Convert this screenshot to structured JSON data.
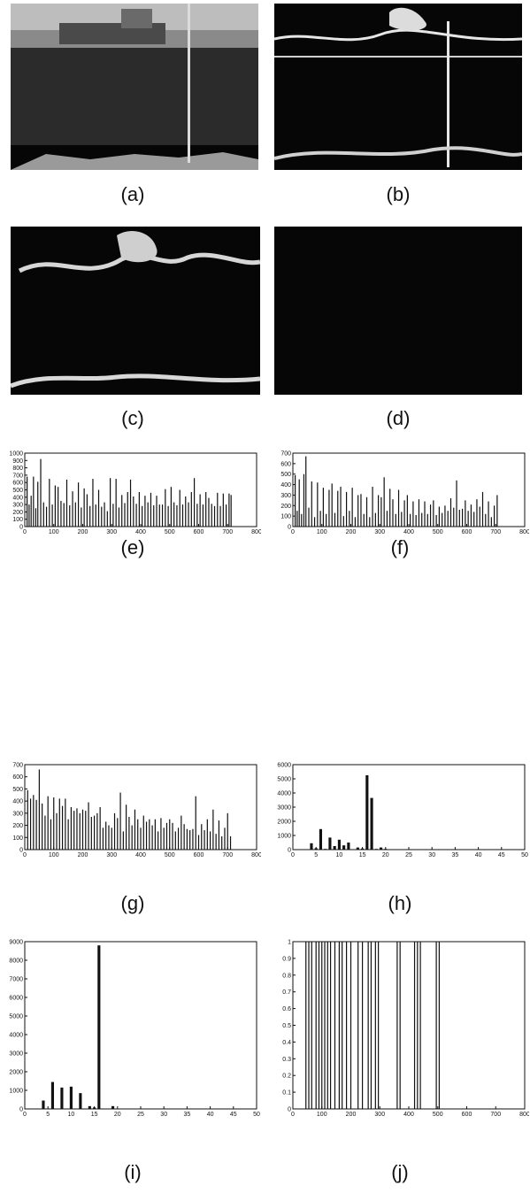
{
  "captions": {
    "a": "(a)",
    "b": "(b)",
    "c": "(c)",
    "d": "(d)",
    "e": "(e)",
    "f": "(f)",
    "g": "(g)",
    "h": "(h)",
    "i": "(i)",
    "j": "(j)"
  },
  "chart_data": [
    {
      "id": "e",
      "type": "bar",
      "xlim": [
        0,
        800
      ],
      "ylim": [
        0,
        1000
      ],
      "xticks": [
        "0",
        "100",
        "200",
        "300",
        "400",
        "500",
        "600",
        "700",
        "800"
      ],
      "yticks": [
        "0",
        "100",
        "200",
        "300",
        "400",
        "500",
        "600",
        "700",
        "800",
        "900",
        "1000"
      ],
      "bar_color": "#111111",
      "x": [
        8,
        15,
        22,
        30,
        38,
        45,
        55,
        65,
        75,
        85,
        95,
        105,
        115,
        125,
        135,
        145,
        155,
        165,
        175,
        185,
        195,
        205,
        215,
        225,
        235,
        245,
        255,
        265,
        275,
        285,
        295,
        305,
        315,
        325,
        335,
        345,
        355,
        365,
        375,
        385,
        395,
        405,
        415,
        425,
        435,
        445,
        455,
        465,
        475,
        485,
        495,
        505,
        515,
        525,
        535,
        545,
        555,
        565,
        575,
        585,
        595,
        605,
        615,
        625,
        635,
        645,
        655,
        665,
        675,
        685,
        695,
        705,
        712
      ],
      "values": [
        680,
        300,
        420,
        680,
        250,
        610,
        920,
        330,
        270,
        650,
        300,
        560,
        540,
        350,
        320,
        640,
        290,
        480,
        330,
        600,
        260,
        520,
        440,
        280,
        650,
        300,
        500,
        270,
        330,
        210,
        660,
        310,
        650,
        260,
        430,
        320,
        470,
        640,
        410,
        310,
        470,
        280,
        420,
        330,
        460,
        290,
        420,
        300,
        300,
        510,
        280,
        540,
        330,
        290,
        500,
        300,
        410,
        330,
        470,
        660,
        310,
        440,
        300,
        470,
        390,
        310,
        280,
        460,
        280,
        450,
        300,
        450,
        430
      ]
    },
    {
      "id": "f",
      "type": "bar",
      "xlim": [
        0,
        800
      ],
      "ylim": [
        0,
        700
      ],
      "xticks": [
        "0",
        "100",
        "200",
        "300",
        "400",
        "500",
        "600",
        "700",
        "800"
      ],
      "yticks": [
        "0",
        "100",
        "200",
        "300",
        "400",
        "500",
        "600",
        "700"
      ],
      "bar_color": "#111111",
      "x": [
        8,
        15,
        22,
        30,
        38,
        45,
        55,
        65,
        75,
        85,
        95,
        105,
        115,
        125,
        135,
        145,
        155,
        165,
        175,
        185,
        195,
        205,
        215,
        225,
        235,
        245,
        255,
        265,
        275,
        285,
        295,
        305,
        315,
        325,
        335,
        345,
        355,
        365,
        375,
        385,
        395,
        405,
        415,
        425,
        435,
        445,
        455,
        465,
        475,
        485,
        495,
        505,
        515,
        525,
        535,
        545,
        555,
        565,
        575,
        585,
        595,
        605,
        615,
        625,
        635,
        645,
        655,
        665,
        675,
        685,
        695,
        705
      ],
      "values": [
        490,
        150,
        450,
        120,
        500,
        670,
        180,
        430,
        90,
        420,
        150,
        370,
        120,
        350,
        410,
        130,
        340,
        380,
        100,
        330,
        150,
        370,
        90,
        300,
        310,
        120,
        280,
        90,
        380,
        130,
        300,
        280,
        470,
        150,
        360,
        260,
        120,
        350,
        140,
        250,
        300,
        120,
        240,
        110,
        260,
        130,
        240,
        120,
        210,
        250,
        110,
        190,
        130,
        200,
        150,
        270,
        180,
        440,
        160,
        170,
        250,
        150,
        210,
        140,
        260,
        190,
        330,
        120,
        240,
        90,
        200,
        300
      ]
    },
    {
      "id": "g",
      "type": "bar",
      "xlim": [
        0,
        800
      ],
      "ylim": [
        0,
        700
      ],
      "xticks": [
        "0",
        "100",
        "200",
        "300",
        "400",
        "500",
        "600",
        "700",
        "800"
      ],
      "yticks": [
        "0",
        "100",
        "200",
        "300",
        "400",
        "500",
        "600",
        "700"
      ],
      "bar_color": "#111111",
      "x": [
        10,
        20,
        30,
        40,
        50,
        60,
        70,
        80,
        90,
        100,
        110,
        120,
        130,
        140,
        150,
        160,
        170,
        180,
        190,
        200,
        210,
        220,
        230,
        240,
        250,
        260,
        270,
        280,
        290,
        300,
        310,
        320,
        330,
        340,
        350,
        360,
        370,
        380,
        390,
        400,
        410,
        420,
        430,
        440,
        450,
        460,
        470,
        480,
        490,
        500,
        510,
        520,
        530,
        540,
        550,
        560,
        570,
        580,
        590,
        600,
        610,
        620,
        630,
        640,
        650,
        660,
        670,
        680,
        690,
        700,
        710
      ],
      "values": [
        490,
        420,
        450,
        410,
        660,
        380,
        280,
        440,
        250,
        430,
        300,
        420,
        360,
        420,
        250,
        350,
        320,
        340,
        300,
        330,
        320,
        390,
        270,
        280,
        300,
        350,
        180,
        230,
        200,
        180,
        300,
        260,
        470,
        150,
        370,
        270,
        200,
        330,
        250,
        180,
        280,
        230,
        250,
        200,
        250,
        150,
        260,
        180,
        220,
        250,
        220,
        150,
        180,
        280,
        210,
        170,
        160,
        170,
        440,
        120,
        210,
        160,
        250,
        150,
        330,
        130,
        240,
        110,
        180,
        300,
        110
      ]
    },
    {
      "id": "h",
      "type": "bar",
      "xlim": [
        0,
        50
      ],
      "ylim": [
        0,
        6000
      ],
      "xticks": [
        "0",
        "5",
        "10",
        "15",
        "20",
        "25",
        "30",
        "35",
        "40",
        "45",
        "50"
      ],
      "yticks": [
        "0",
        "1000",
        "2000",
        "3000",
        "4000",
        "5000",
        "6000"
      ],
      "bar_color": "#111111",
      "x": [
        4,
        5,
        6,
        7,
        8,
        9,
        10,
        11,
        12,
        14,
        15,
        16,
        17,
        18,
        19,
        20
      ],
      "values": [
        450,
        100,
        1450,
        50,
        850,
        250,
        700,
        300,
        500,
        150,
        80,
        5250,
        3650,
        50,
        150,
        50
      ]
    },
    {
      "id": "i",
      "type": "bar",
      "xlim": [
        0,
        50
      ],
      "ylim": [
        0,
        9000
      ],
      "xticks": [
        "0",
        "5",
        "10",
        "15",
        "20",
        "25",
        "30",
        "35",
        "40",
        "45",
        "50"
      ],
      "yticks": [
        "0",
        "1000",
        "2000",
        "3000",
        "4000",
        "5000",
        "6000",
        "7000",
        "8000",
        "9000"
      ],
      "bar_color": "#111111",
      "x": [
        4,
        6,
        8,
        10,
        12,
        14,
        15,
        16,
        19
      ],
      "values": [
        450,
        1450,
        1150,
        1200,
        850,
        150,
        80,
        8800,
        150
      ]
    },
    {
      "id": "j",
      "type": "bar",
      "xlim": [
        0,
        800
      ],
      "ylim": [
        0,
        1
      ],
      "xticks": [
        "0",
        "100",
        "200",
        "300",
        "400",
        "500",
        "600",
        "700",
        "800"
      ],
      "yticks": [
        "0",
        "0.1",
        "0.2",
        "0.3",
        "0.4",
        "0.5",
        "0.6",
        "0.7",
        "0.8",
        "0.9",
        "1"
      ],
      "bar_color": "#111111",
      "x": [
        45,
        55,
        65,
        80,
        90,
        100,
        110,
        120,
        130,
        145,
        160,
        170,
        185,
        200,
        225,
        240,
        260,
        270,
        285,
        295,
        360,
        370,
        420,
        430,
        440,
        495,
        505
      ],
      "values": [
        1,
        1,
        1,
        1,
        1,
        1,
        1,
        1,
        1,
        1,
        1,
        1,
        1,
        1,
        1,
        1,
        1,
        1,
        1,
        1,
        1,
        1,
        1,
        1,
        1,
        1,
        1
      ]
    }
  ]
}
